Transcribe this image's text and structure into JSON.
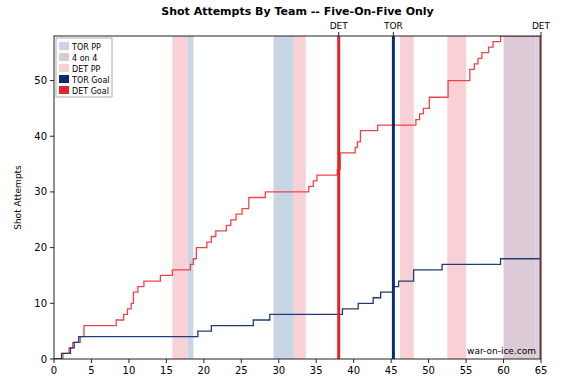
{
  "chart_data": {
    "type": "line",
    "title": "Shot Attempts By Team -- Five-On-Five Only",
    "y_label": "Shot Attempts",
    "source": "war-on-ice.com",
    "xlim": [
      0,
      65
    ],
    "ylim": [
      0,
      58
    ],
    "xticks": [
      0,
      5,
      10,
      15,
      20,
      25,
      30,
      35,
      40,
      45,
      50,
      55,
      60,
      65
    ],
    "yticks": [
      0,
      10,
      20,
      30,
      40,
      50
    ],
    "legend": "top-left",
    "series": [
      {
        "color": "#ee4449",
        "line_style": "step",
        "x": [
          0,
          1.2,
          2,
          2.5,
          3.5,
          4,
          8.3,
          9.3,
          9.8,
          10.3,
          10.6,
          11.2,
          12,
          14.2,
          15.8,
          18.2,
          18.6,
          19,
          20.4,
          21,
          21.6,
          23,
          23.6,
          24.3,
          25.1,
          26,
          28.2,
          34,
          34.6,
          35.1,
          37.8,
          38.2,
          40.2,
          40.5,
          40.9,
          43.2,
          48.3,
          48.8,
          49.3,
          50.1,
          52.6,
          55.5,
          56.1,
          56.6,
          57.1,
          58,
          58.6,
          59.6,
          65
        ],
        "values": [
          0,
          1,
          2,
          3,
          4,
          6,
          7,
          8,
          9,
          10,
          12,
          13,
          14,
          15,
          16,
          17,
          18,
          20,
          21,
          22,
          23,
          24,
          25,
          26,
          27,
          29,
          30,
          31,
          32,
          33,
          34,
          37,
          38,
          39,
          41,
          42,
          43,
          44,
          45,
          47,
          50,
          52,
          53,
          54,
          55,
          56,
          57,
          58,
          58
        ]
      },
      {
        "color": "#1f3d73",
        "line_style": "step",
        "x": [
          0,
          1,
          2.2,
          2.7,
          3.3,
          19.2,
          21,
          26.6,
          28.8,
          38.5,
          40.6,
          42.6,
          43.6,
          45.3,
          46,
          48,
          51.8,
          59.6,
          65
        ],
        "values": [
          0,
          1,
          2,
          3,
          4,
          5,
          6,
          7,
          8,
          9,
          10,
          11,
          12,
          13,
          14,
          16,
          17,
          18,
          18
        ]
      }
    ],
    "shading": [
      {
        "name": "TOR PP",
        "color": "#c8d5e4",
        "intervals": [
          [
            17.8,
            18.6
          ],
          [
            29.3,
            32.0
          ],
          [
            64.3,
            65
          ]
        ]
      },
      {
        "name": "4 on 4",
        "color": "#dccbd6",
        "intervals": [
          [
            60,
            64.3
          ]
        ]
      },
      {
        "name": "DET PP",
        "color": "#f8d0d5",
        "intervals": [
          [
            15.8,
            17.8
          ],
          [
            32.0,
            33.6
          ],
          [
            46.2,
            48.0
          ],
          [
            52.5,
            55.0
          ]
        ]
      }
    ],
    "goals": [
      {
        "name": "TOR Goal",
        "color": "#0b2e6b",
        "events": [
          {
            "x": 45.3,
            "label": "TOR"
          }
        ]
      },
      {
        "name": "DET Goal",
        "color": "#e3242b",
        "events": [
          {
            "x": 38,
            "label": "DET"
          },
          {
            "x": 65,
            "label": "DET"
          }
        ]
      }
    ]
  }
}
